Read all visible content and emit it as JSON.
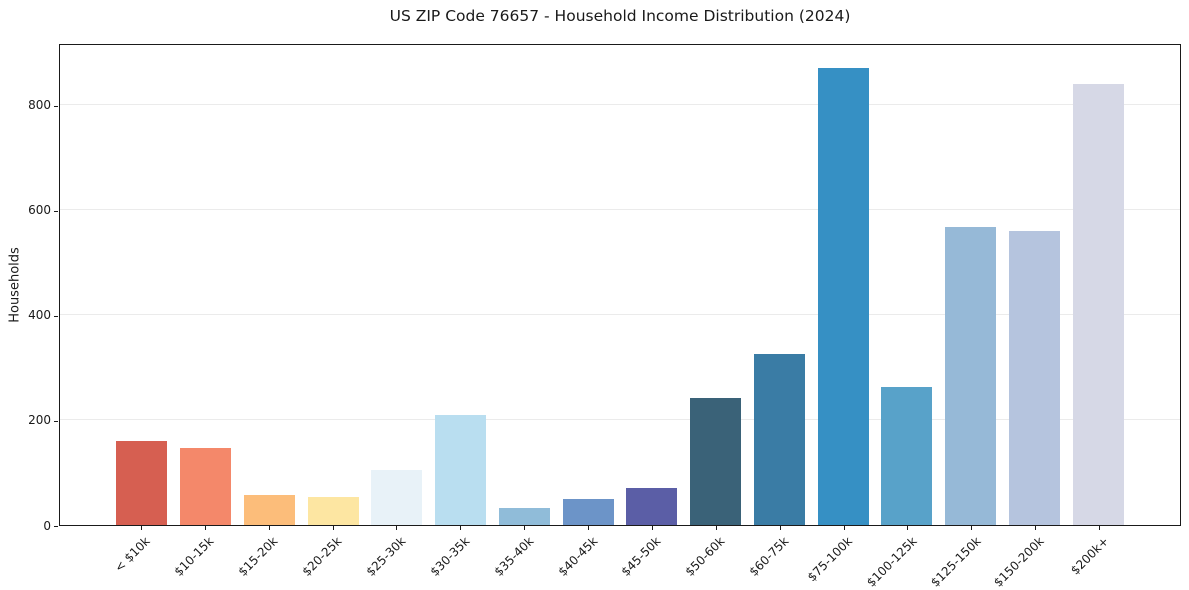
{
  "title": "US ZIP Code 76657 - Household Income Distribution (2024)",
  "chart_data": {
    "type": "bar",
    "title": "US ZIP Code 76657 - Household Income Distribution (2024)",
    "xlabel": "",
    "ylabel": "Households",
    "categories": [
      "< $10k",
      "$10-15k",
      "$15-20k",
      "$20-25k",
      "$25-30k",
      "$30-35k",
      "$35-40k",
      "$40-45k",
      "$45-50k",
      "$50-60k",
      "$60-75k",
      "$75-100k",
      "$100-125k",
      "$125-150k",
      "$150-200k",
      "$200k+"
    ],
    "values": [
      160,
      146,
      57,
      53,
      104,
      210,
      33,
      50,
      70,
      242,
      326,
      871,
      262,
      568,
      560,
      840
    ],
    "bar_colors": [
      "#d65f51",
      "#f4886a",
      "#fcbd7a",
      "#fde6a2",
      "#e8f2f8",
      "#b9def0",
      "#90bcd9",
      "#6c94c8",
      "#5b5ea6",
      "#3a6278",
      "#3a7ca5",
      "#3690c4",
      "#58a2c9",
      "#96b9d7",
      "#b5c4de",
      "#d6d8e6"
    ],
    "ylim": [
      0,
      918
    ],
    "yticks": [
      0,
      200,
      400,
      600,
      800
    ],
    "grid": "horizontal",
    "legend": "none",
    "gridline_color": "#ebebeb",
    "axis_color": "#1a1a1a",
    "background_color": "#ffffff"
  }
}
